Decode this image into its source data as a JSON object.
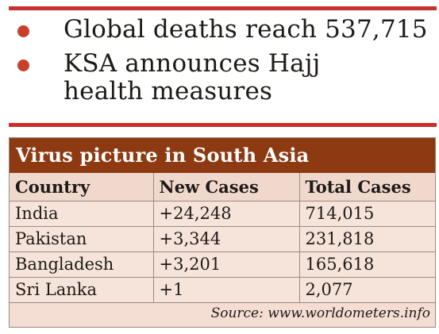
{
  "bullets": [
    {
      "text": "Global deaths reach 537,715"
    },
    {
      "text": "KSA announces Hajj health measures"
    }
  ],
  "colors": {
    "accent_rule": "#c8302b",
    "bullet_dot": "#c8402a",
    "table_header_bg": "#8d3a12",
    "table_body_bg": "#f4ddd2"
  },
  "table": {
    "title": "Virus picture in South Asia",
    "columns": [
      "Country",
      "New Cases",
      "Total Cases"
    ],
    "rows": [
      [
        "India",
        "+24,248",
        "714,015"
      ],
      [
        "Pakistan",
        "+3,344",
        "231,818"
      ],
      [
        "Bangladesh",
        "+3,201",
        "165,618"
      ],
      [
        "Sri Lanka",
        "+1",
        "2,077"
      ]
    ],
    "source": "Source: www.worldometers.info"
  }
}
